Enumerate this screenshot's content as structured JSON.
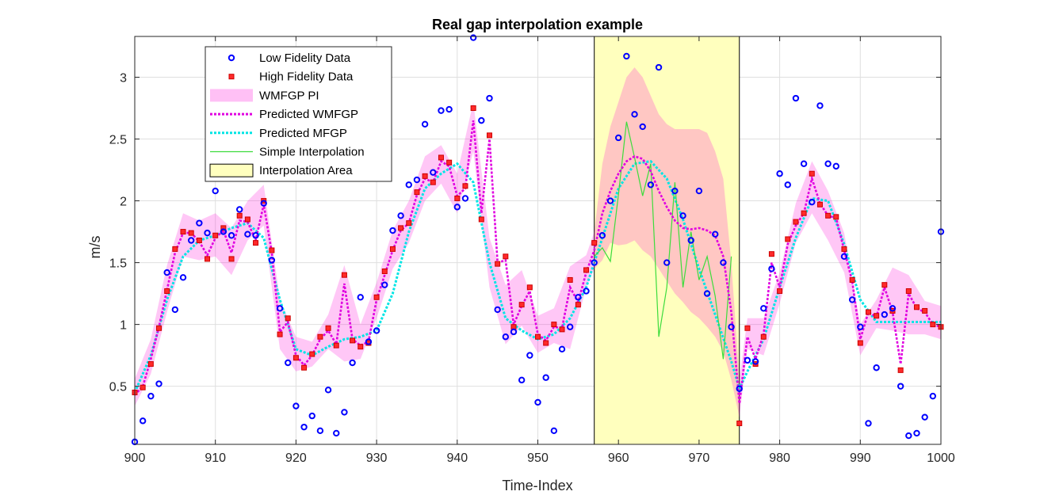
{
  "chart_data": {
    "type": "line",
    "title": "Real gap interpolation example",
    "xlabel": "Time-Index",
    "ylabel": "m/s",
    "xlim": [
      900,
      1000
    ],
    "ylim": [
      0.03,
      3.33
    ],
    "xticks": [
      900,
      910,
      920,
      930,
      940,
      950,
      960,
      970,
      980,
      990,
      1000
    ],
    "yticks": [
      0.5,
      1,
      1.5,
      2,
      2.5,
      3
    ],
    "ytick_labels": [
      "0.5",
      "1",
      "1.5",
      "2",
      "2.5",
      "3"
    ],
    "grid": true,
    "legend_position": "top-left",
    "legend": [
      {
        "label": "Low Fidelity Data",
        "kind": "circle",
        "color": "#0000ff"
      },
      {
        "label": "High Fidelity Data",
        "kind": "square",
        "color": "#ff0000"
      },
      {
        "label": "WMFGP PI",
        "kind": "patch",
        "color": "#ffc0f5"
      },
      {
        "label": "Predicted WMFGP",
        "kind": "dotted-line",
        "color": "#e000e0"
      },
      {
        "label": "Predicted MFGP",
        "kind": "dotted-line",
        "color": "#00e5e5"
      },
      {
        "label": "Simple Interpolation",
        "kind": "line",
        "color": "#3cdc3c"
      },
      {
        "label": "Interpolation Area",
        "kind": "rect",
        "color": "#ffffbe"
      }
    ],
    "interpolation_area": {
      "x_start": 957,
      "x_end": 975,
      "color": "#ffffbe"
    },
    "low_fidelity": {
      "x": [
        900,
        901,
        902,
        903,
        904,
        905,
        906,
        907,
        908,
        909,
        910,
        911,
        912,
        913,
        914,
        915,
        916,
        917,
        918,
        919,
        920,
        921,
        922,
        923,
        924,
        925,
        926,
        927,
        928,
        929,
        930,
        931,
        932,
        933,
        934,
        935,
        936,
        937,
        938,
        939,
        940,
        941,
        942,
        943,
        944,
        945,
        946,
        947,
        948,
        949,
        950,
        951,
        952,
        953,
        954,
        955,
        956,
        957,
        958,
        959,
        960,
        961,
        962,
        963,
        964,
        965,
        966,
        967,
        968,
        969,
        970,
        971,
        972,
        973,
        974,
        975,
        976,
        977,
        978,
        979,
        980,
        981,
        982,
        983,
        984,
        985,
        986,
        987,
        988,
        989,
        990,
        991,
        992,
        993,
        994,
        995,
        996,
        997,
        998,
        999,
        1000
      ],
      "y": [
        0.05,
        0.22,
        0.42,
        0.52,
        1.42,
        1.12,
        1.38,
        1.68,
        1.82,
        1.74,
        2.08,
        1.75,
        1.72,
        1.93,
        1.73,
        1.72,
        1.98,
        1.52,
        1.13,
        0.69,
        0.34,
        0.17,
        0.26,
        0.14,
        0.47,
        0.12,
        0.29,
        0.69,
        1.22,
        0.86,
        0.95,
        1.32,
        1.76,
        1.88,
        2.13,
        2.17,
        2.62,
        2.23,
        2.73,
        2.74,
        1.95,
        2.02,
        3.32,
        2.65,
        2.83,
        1.12,
        0.9,
        0.94,
        0.55,
        0.75,
        0.37,
        0.57,
        0.14,
        0.8,
        0.98,
        1.22,
        1.27,
        1.5,
        1.72,
        2.0,
        2.51,
        3.17,
        2.7,
        2.6,
        2.13,
        3.08,
        1.5,
        2.08,
        1.88,
        1.68,
        2.08,
        1.25,
        1.73,
        1.5,
        0.98,
        0.48,
        0.71,
        0.7,
        1.13,
        1.45,
        2.22,
        2.13,
        2.83,
        2.3,
        1.99,
        2.77,
        2.3,
        2.28,
        1.55,
        1.2,
        0.98,
        0.2,
        0.65,
        1.08,
        1.13,
        0.5,
        0.1,
        0.12,
        0.25,
        0.42,
        1.75
      ]
    },
    "high_fidelity": {
      "x": [
        900,
        901,
        902,
        903,
        904,
        905,
        906,
        907,
        908,
        909,
        910,
        911,
        912,
        913,
        914,
        915,
        916,
        917,
        918,
        919,
        920,
        921,
        922,
        923,
        924,
        925,
        926,
        927,
        928,
        929,
        930,
        931,
        932,
        933,
        934,
        935,
        936,
        937,
        938,
        939,
        940,
        941,
        942,
        943,
        944,
        945,
        946,
        947,
        948,
        949,
        950,
        951,
        952,
        953,
        954,
        955,
        956,
        957,
        975,
        976,
        977,
        978,
        979,
        980,
        981,
        982,
        983,
        984,
        985,
        986,
        987,
        988,
        989,
        990,
        991,
        992,
        993,
        994,
        995,
        996,
        997,
        998,
        999,
        1000
      ],
      "y": [
        0.45,
        0.49,
        0.68,
        0.97,
        1.27,
        1.61,
        1.75,
        1.74,
        1.68,
        1.53,
        1.72,
        1.78,
        1.53,
        1.88,
        1.85,
        1.66,
        2.0,
        1.6,
        0.92,
        1.05,
        0.73,
        0.65,
        0.76,
        0.9,
        0.97,
        0.83,
        1.4,
        0.87,
        0.82,
        0.85,
        1.22,
        1.43,
        1.61,
        1.78,
        1.82,
        2.07,
        2.2,
        2.15,
        2.35,
        2.31,
        2.02,
        2.12,
        2.75,
        1.85,
        2.53,
        1.49,
        1.55,
        0.98,
        1.16,
        1.3,
        0.9,
        0.85,
        1.0,
        0.96,
        1.36,
        1.16,
        1.44,
        1.66,
        0.2,
        0.97,
        0.68,
        0.9,
        1.57,
        1.27,
        1.69,
        1.83,
        1.9,
        2.22,
        1.97,
        1.88,
        1.87,
        1.61,
        1.36,
        0.85,
        1.1,
        1.07,
        1.32,
        1.11,
        0.63,
        1.27,
        1.14,
        1.11,
        1.0,
        0.98
      ]
    },
    "predicted_wmfgp": {
      "x": [
        900,
        901,
        902,
        903,
        904,
        905,
        906,
        907,
        908,
        909,
        910,
        911,
        912,
        913,
        914,
        915,
        916,
        917,
        918,
        919,
        920,
        921,
        922,
        923,
        924,
        925,
        926,
        927,
        928,
        929,
        930,
        931,
        932,
        933,
        934,
        935,
        936,
        937,
        938,
        939,
        940,
        941,
        942,
        943,
        944,
        945,
        946,
        947,
        948,
        949,
        950,
        951,
        952,
        953,
        954,
        955,
        956,
        957,
        958,
        959,
        960,
        961,
        962,
        963,
        964,
        965,
        966,
        967,
        968,
        969,
        970,
        971,
        972,
        973,
        974,
        975,
        976,
        977,
        978,
        979,
        980,
        981,
        982,
        983,
        984,
        985,
        986,
        987,
        988,
        989,
        990,
        991,
        992,
        993,
        994,
        995,
        996,
        997,
        998,
        999,
        1000
      ],
      "y": [
        0.43,
        0.5,
        0.72,
        0.98,
        1.28,
        1.58,
        1.74,
        1.74,
        1.67,
        1.56,
        1.7,
        1.76,
        1.58,
        1.84,
        1.83,
        1.68,
        1.97,
        1.58,
        0.94,
        1.02,
        0.75,
        0.67,
        0.75,
        0.88,
        0.95,
        0.84,
        1.33,
        0.88,
        0.83,
        0.86,
        1.2,
        1.4,
        1.6,
        1.76,
        1.82,
        2.05,
        2.18,
        2.15,
        2.32,
        2.28,
        2.04,
        2.1,
        2.65,
        1.9,
        2.5,
        1.5,
        1.52,
        1.0,
        1.15,
        1.27,
        0.92,
        0.87,
        0.98,
        0.97,
        1.3,
        1.18,
        1.42,
        1.6,
        1.9,
        2.08,
        2.22,
        2.32,
        2.36,
        2.34,
        2.24,
        2.08,
        1.95,
        1.84,
        1.78,
        1.77,
        1.78,
        1.76,
        1.72,
        1.55,
        1.1,
        0.36,
        0.9,
        0.72,
        0.92,
        1.5,
        1.3,
        1.65,
        1.8,
        1.9,
        2.18,
        1.98,
        1.88,
        1.86,
        1.6,
        1.35,
        0.88,
        1.1,
        1.06,
        1.3,
        1.1,
        0.68,
        1.25,
        1.13,
        1.1,
        1.0,
        0.98
      ]
    },
    "predicted_mfgp": {
      "x": [
        900,
        902,
        904,
        906,
        908,
        910,
        912,
        914,
        916,
        918,
        920,
        922,
        924,
        926,
        928,
        930,
        932,
        934,
        936,
        938,
        940,
        942,
        944,
        946,
        948,
        950,
        952,
        954,
        956,
        958,
        960,
        962,
        964,
        966,
        968,
        970,
        972,
        974,
        975,
        976,
        978,
        980,
        982,
        984,
        986,
        988,
        990,
        992,
        994,
        996,
        998,
        1000
      ],
      "y": [
        0.45,
        0.75,
        1.2,
        1.55,
        1.68,
        1.72,
        1.78,
        1.82,
        1.7,
        1.2,
        0.8,
        0.75,
        0.82,
        0.88,
        0.9,
        0.95,
        1.25,
        1.75,
        2.1,
        2.22,
        2.3,
        2.15,
        1.5,
        1.05,
        0.95,
        0.88,
        0.92,
        1.05,
        1.3,
        1.7,
        2.1,
        2.3,
        2.32,
        2.18,
        1.85,
        1.45,
        1.08,
        0.7,
        0.48,
        0.62,
        0.88,
        1.3,
        1.7,
        2.02,
        2.0,
        1.65,
        1.2,
        1.02,
        1.02,
        1.02,
        1.02,
        1.02
      ]
    },
    "simple_interpolation": {
      "x": [
        957,
        958,
        959,
        960,
        961,
        962,
        963,
        964,
        965,
        966,
        967,
        968,
        969,
        970,
        971,
        972,
        973,
        974
      ],
      "y": [
        1.55,
        1.62,
        1.51,
        2.05,
        2.64,
        2.35,
        2.04,
        2.3,
        0.9,
        1.3,
        2.15,
        1.3,
        1.75,
        1.36,
        1.55,
        1.23,
        0.72,
        1.55
      ]
    },
    "wmfgp_pi": {
      "x": [
        900,
        902,
        904,
        906,
        908,
        910,
        912,
        914,
        916,
        918,
        920,
        922,
        924,
        926,
        928,
        930,
        932,
        934,
        936,
        938,
        940,
        942,
        944,
        946,
        948,
        950,
        952,
        954,
        956,
        957,
        958,
        959,
        960,
        961,
        962,
        963,
        964,
        965,
        966,
        967,
        968,
        969,
        970,
        971,
        972,
        973,
        974,
        975,
        976,
        978,
        980,
        982,
        984,
        986,
        988,
        990,
        992,
        994,
        996,
        998,
        1000
      ],
      "upper": [
        0.56,
        0.88,
        1.48,
        1.9,
        1.84,
        1.9,
        1.78,
        2.0,
        2.13,
        1.2,
        0.9,
        0.86,
        1.08,
        1.48,
        1.0,
        1.34,
        1.76,
        2.0,
        2.36,
        2.45,
        2.22,
        2.8,
        1.7,
        1.32,
        1.44,
        1.07,
        1.13,
        1.47,
        1.56,
        1.75,
        2.3,
        2.6,
        2.8,
        3.0,
        3.08,
        3.0,
        2.85,
        2.7,
        2.62,
        2.58,
        2.58,
        2.58,
        2.58,
        2.55,
        2.4,
        2.18,
        1.5,
        0.55,
        1.05,
        1.05,
        1.42,
        1.98,
        2.32,
        2.08,
        1.74,
        1.0,
        1.2,
        1.46,
        1.4,
        1.19,
        1.15
      ],
      "lower": [
        0.34,
        0.6,
        1.1,
        1.55,
        1.52,
        1.55,
        1.4,
        1.68,
        1.8,
        0.8,
        0.62,
        0.66,
        0.8,
        0.7,
        0.72,
        1.05,
        1.45,
        1.66,
        2.0,
        2.14,
        1.9,
        2.4,
        1.3,
        0.84,
        0.99,
        0.77,
        0.85,
        0.8,
        1.3,
        1.45,
        1.52,
        1.66,
        1.64,
        1.65,
        1.68,
        1.6,
        1.55,
        1.45,
        1.35,
        1.25,
        1.18,
        1.1,
        1.05,
        0.98,
        0.9,
        0.78,
        0.55,
        0.25,
        0.8,
        0.75,
        1.17,
        1.66,
        1.9,
        1.68,
        1.42,
        0.75,
        0.97,
        0.95,
        0.92,
        0.92,
        0.88
      ]
    }
  }
}
